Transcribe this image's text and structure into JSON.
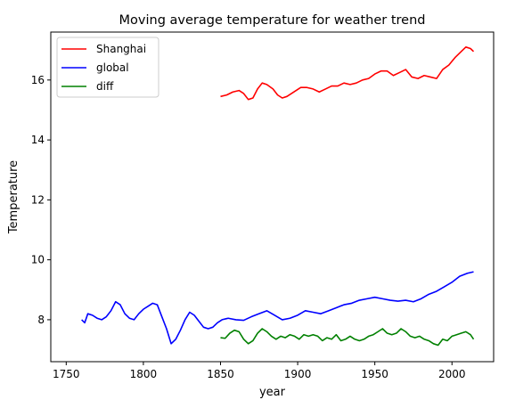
{
  "chart_data": {
    "type": "line",
    "title": "Moving average temperature for weather trend",
    "xlabel": "year",
    "ylabel": "Temperature",
    "xlim": [
      1740,
      2027
    ],
    "ylim": [
      6.6,
      17.6
    ],
    "x_ticks": [
      1750,
      1800,
      1850,
      1900,
      1950,
      2000
    ],
    "y_ticks": [
      8,
      10,
      12,
      14,
      16
    ],
    "grid": false,
    "legend_position": "top-left",
    "series": [
      {
        "name": "Shanghai",
        "color": "#ff0000",
        "x": [
          1850,
          1854,
          1858,
          1862,
          1865,
          1868,
          1871,
          1874,
          1877,
          1880,
          1884,
          1887,
          1890,
          1893,
          1896,
          1899,
          1902,
          1906,
          1910,
          1914,
          1918,
          1922,
          1926,
          1930,
          1934,
          1938,
          1942,
          1946,
          1950,
          1954,
          1958,
          1962,
          1966,
          1970,
          1974,
          1978,
          1982,
          1986,
          1990,
          1994,
          1998,
          2002,
          2006,
          2009,
          2012,
          2014
        ],
        "y": [
          15.45,
          15.5,
          15.6,
          15.65,
          15.55,
          15.35,
          15.4,
          15.7,
          15.9,
          15.85,
          15.7,
          15.5,
          15.4,
          15.45,
          15.55,
          15.65,
          15.75,
          15.75,
          15.7,
          15.6,
          15.7,
          15.8,
          15.8,
          15.9,
          15.85,
          15.9,
          16.0,
          16.05,
          16.2,
          16.3,
          16.3,
          16.15,
          16.25,
          16.35,
          16.1,
          16.05,
          16.15,
          16.1,
          16.05,
          16.35,
          16.5,
          16.75,
          16.95,
          17.1,
          17.05,
          16.95
        ]
      },
      {
        "name": "global",
        "color": "#0000ff",
        "x": [
          1760,
          1762,
          1764,
          1767,
          1770,
          1773,
          1776,
          1779,
          1782,
          1785,
          1788,
          1791,
          1794,
          1797,
          1800,
          1803,
          1806,
          1809,
          1812,
          1815,
          1818,
          1821,
          1824,
          1827,
          1830,
          1833,
          1836,
          1839,
          1842,
          1845,
          1848,
          1851,
          1855,
          1860,
          1865,
          1870,
          1875,
          1880,
          1885,
          1890,
          1895,
          1900,
          1905,
          1910,
          1915,
          1920,
          1925,
          1930,
          1935,
          1940,
          1945,
          1950,
          1955,
          1960,
          1965,
          1970,
          1975,
          1980,
          1985,
          1990,
          1995,
          2000,
          2005,
          2010,
          2014
        ],
        "y": [
          8.0,
          7.9,
          8.2,
          8.15,
          8.05,
          8.0,
          8.1,
          8.3,
          8.6,
          8.5,
          8.2,
          8.05,
          8.0,
          8.2,
          8.35,
          8.45,
          8.55,
          8.5,
          8.1,
          7.7,
          7.2,
          7.35,
          7.65,
          8.0,
          8.25,
          8.15,
          7.95,
          7.75,
          7.7,
          7.75,
          7.9,
          8.0,
          8.05,
          8.0,
          7.98,
          8.1,
          8.2,
          8.3,
          8.15,
          8.0,
          8.05,
          8.15,
          8.3,
          8.25,
          8.2,
          8.3,
          8.4,
          8.5,
          8.55,
          8.65,
          8.7,
          8.75,
          8.7,
          8.65,
          8.62,
          8.65,
          8.6,
          8.7,
          8.85,
          8.95,
          9.1,
          9.25,
          9.45,
          9.55,
          9.6
        ]
      },
      {
        "name": "diff",
        "color": "#008000",
        "x": [
          1850,
          1853,
          1856,
          1859,
          1862,
          1865,
          1868,
          1871,
          1874,
          1877,
          1880,
          1883,
          1886,
          1889,
          1892,
          1895,
          1898,
          1901,
          1904,
          1907,
          1910,
          1913,
          1916,
          1919,
          1922,
          1925,
          1928,
          1931,
          1934,
          1937,
          1940,
          1943,
          1946,
          1949,
          1952,
          1955,
          1958,
          1961,
          1964,
          1967,
          1970,
          1973,
          1976,
          1979,
          1982,
          1985,
          1988,
          1991,
          1994,
          1997,
          2000,
          2003,
          2006,
          2009,
          2012,
          2014
        ],
        "y": [
          7.4,
          7.38,
          7.55,
          7.65,
          7.6,
          7.35,
          7.2,
          7.3,
          7.55,
          7.7,
          7.6,
          7.45,
          7.35,
          7.45,
          7.4,
          7.5,
          7.45,
          7.35,
          7.5,
          7.45,
          7.5,
          7.45,
          7.3,
          7.4,
          7.35,
          7.5,
          7.3,
          7.35,
          7.45,
          7.35,
          7.3,
          7.35,
          7.45,
          7.5,
          7.6,
          7.7,
          7.55,
          7.5,
          7.55,
          7.7,
          7.6,
          7.45,
          7.4,
          7.45,
          7.35,
          7.3,
          7.2,
          7.15,
          7.35,
          7.3,
          7.45,
          7.5,
          7.55,
          7.6,
          7.5,
          7.35
        ]
      }
    ]
  }
}
